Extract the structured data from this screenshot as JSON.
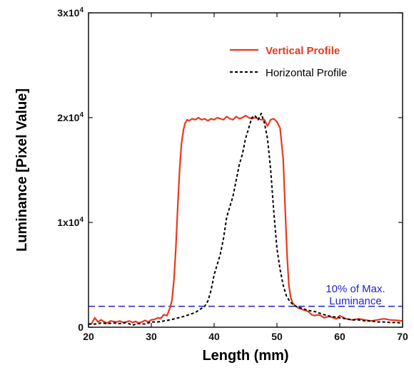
{
  "chart_data": {
    "type": "line",
    "xlabel": "Length (mm)",
    "ylabel": "Luminance [Pixel Value]",
    "xlim": [
      20,
      70
    ],
    "ylim": [
      0,
      30000
    ],
    "grid": false,
    "legend_position": "top-right",
    "x_ticks": [
      {
        "value": 20,
        "label": "20"
      },
      {
        "value": 30,
        "label": "30"
      },
      {
        "value": 40,
        "label": "40"
      },
      {
        "value": 50,
        "label": "50"
      },
      {
        "value": 60,
        "label": "60"
      },
      {
        "value": 70,
        "label": "70"
      }
    ],
    "y_ticks": [
      {
        "value": 0,
        "base": "0",
        "exp": ""
      },
      {
        "value": 10000,
        "base": "1x10",
        "exp": "4"
      },
      {
        "value": 20000,
        "base": "2x10",
        "exp": "4"
      },
      {
        "value": 30000,
        "base": "3x10",
        "exp": "4"
      }
    ],
    "series": [
      {
        "name": "Vertical Profile",
        "color": "#e8381c",
        "style": "solid",
        "x": [
          20,
          20.5,
          21,
          21.5,
          22,
          22.5,
          23,
          23.5,
          24,
          24.5,
          25,
          25.5,
          26,
          26.5,
          27,
          27.5,
          28,
          28.5,
          29,
          29.5,
          30,
          30.5,
          31,
          31.5,
          32,
          32.5,
          33,
          33.3,
          33.6,
          33.9,
          34.2,
          34.5,
          34.8,
          35.1,
          35.4,
          35.7,
          36,
          36.5,
          37,
          37.5,
          38,
          38.5,
          39,
          39.5,
          40,
          40.5,
          41,
          41.5,
          42,
          42.5,
          43,
          43.5,
          44,
          44.5,
          45,
          45.5,
          46,
          46.5,
          47,
          47.5,
          48,
          48.5,
          49,
          49.5,
          50,
          50.5,
          51,
          51.3,
          51.6,
          51.9,
          52.2,
          52.5,
          53,
          53.5,
          54,
          54.5,
          55,
          55.5,
          56,
          56.5,
          57,
          57.5,
          58,
          58.5,
          59,
          59.5,
          60,
          61,
          62,
          63,
          64,
          65,
          66,
          67,
          68,
          69,
          70
        ],
        "y": [
          300,
          350,
          900,
          500,
          700,
          500,
          400,
          600,
          550,
          500,
          600,
          450,
          500,
          600,
          450,
          550,
          400,
          500,
          650,
          500,
          700,
          750,
          900,
          850,
          1200,
          1100,
          1900,
          2600,
          4500,
          7500,
          11500,
          15000,
          17500,
          18800,
          19500,
          19800,
          19700,
          19900,
          19800,
          20000,
          19800,
          19900,
          19700,
          19900,
          19800,
          20000,
          19900,
          19800,
          20100,
          19900,
          19800,
          20100,
          19900,
          20000,
          20200,
          20000,
          19900,
          20000,
          19900,
          19800,
          19800,
          19200,
          19800,
          19900,
          19600,
          19000,
          16000,
          11500,
          7000,
          4000,
          2800,
          2300,
          2000,
          1800,
          1700,
          1600,
          1500,
          1200,
          1100,
          1200,
          1100,
          900,
          1000,
          1000,
          900,
          800,
          1100,
          800,
          700,
          800,
          700,
          600,
          700,
          800,
          700,
          650,
          600
        ]
      },
      {
        "name": "Horizontal Profile",
        "color": "#000000",
        "style": "dashed",
        "x": [
          20,
          21,
          22,
          23,
          24,
          25,
          26,
          27,
          28,
          29,
          30,
          31,
          32,
          33,
          34,
          35,
          36,
          37,
          38,
          38.5,
          39,
          39.5,
          40,
          40.5,
          41,
          41.5,
          42,
          42.5,
          43,
          43.5,
          44,
          44.5,
          45,
          45.5,
          46,
          46.5,
          47,
          47.5,
          48,
          48.5,
          49,
          49.5,
          50,
          50.5,
          51,
          51.5,
          52,
          52.5,
          53,
          54,
          55,
          56,
          57,
          58,
          59,
          60,
          61,
          62,
          63,
          64,
          65,
          66,
          67,
          68,
          69,
          70
        ],
        "y": [
          300,
          300,
          400,
          350,
          400,
          350,
          450,
          200,
          350,
          300,
          500,
          500,
          600,
          700,
          850,
          1000,
          1200,
          1400,
          1800,
          2000,
          2500,
          3500,
          5000,
          6000,
          7000,
          8500,
          10500,
          11500,
          12500,
          14000,
          15500,
          16500,
          18000,
          19000,
          20000,
          20200,
          19800,
          20400,
          19500,
          18000,
          15000,
          11000,
          7500,
          5500,
          4000,
          3000,
          2500,
          2200,
          2000,
          1800,
          1600,
          1500,
          1300,
          1100,
          1000,
          900,
          800,
          700,
          700,
          600,
          600,
          500,
          500,
          450,
          450,
          400
        ]
      }
    ],
    "reference_line": {
      "value": 2000,
      "color": "#1f1fd0",
      "style": "dashed",
      "label_line1": "10% of Max.",
      "label_line2": "Luminance"
    }
  }
}
